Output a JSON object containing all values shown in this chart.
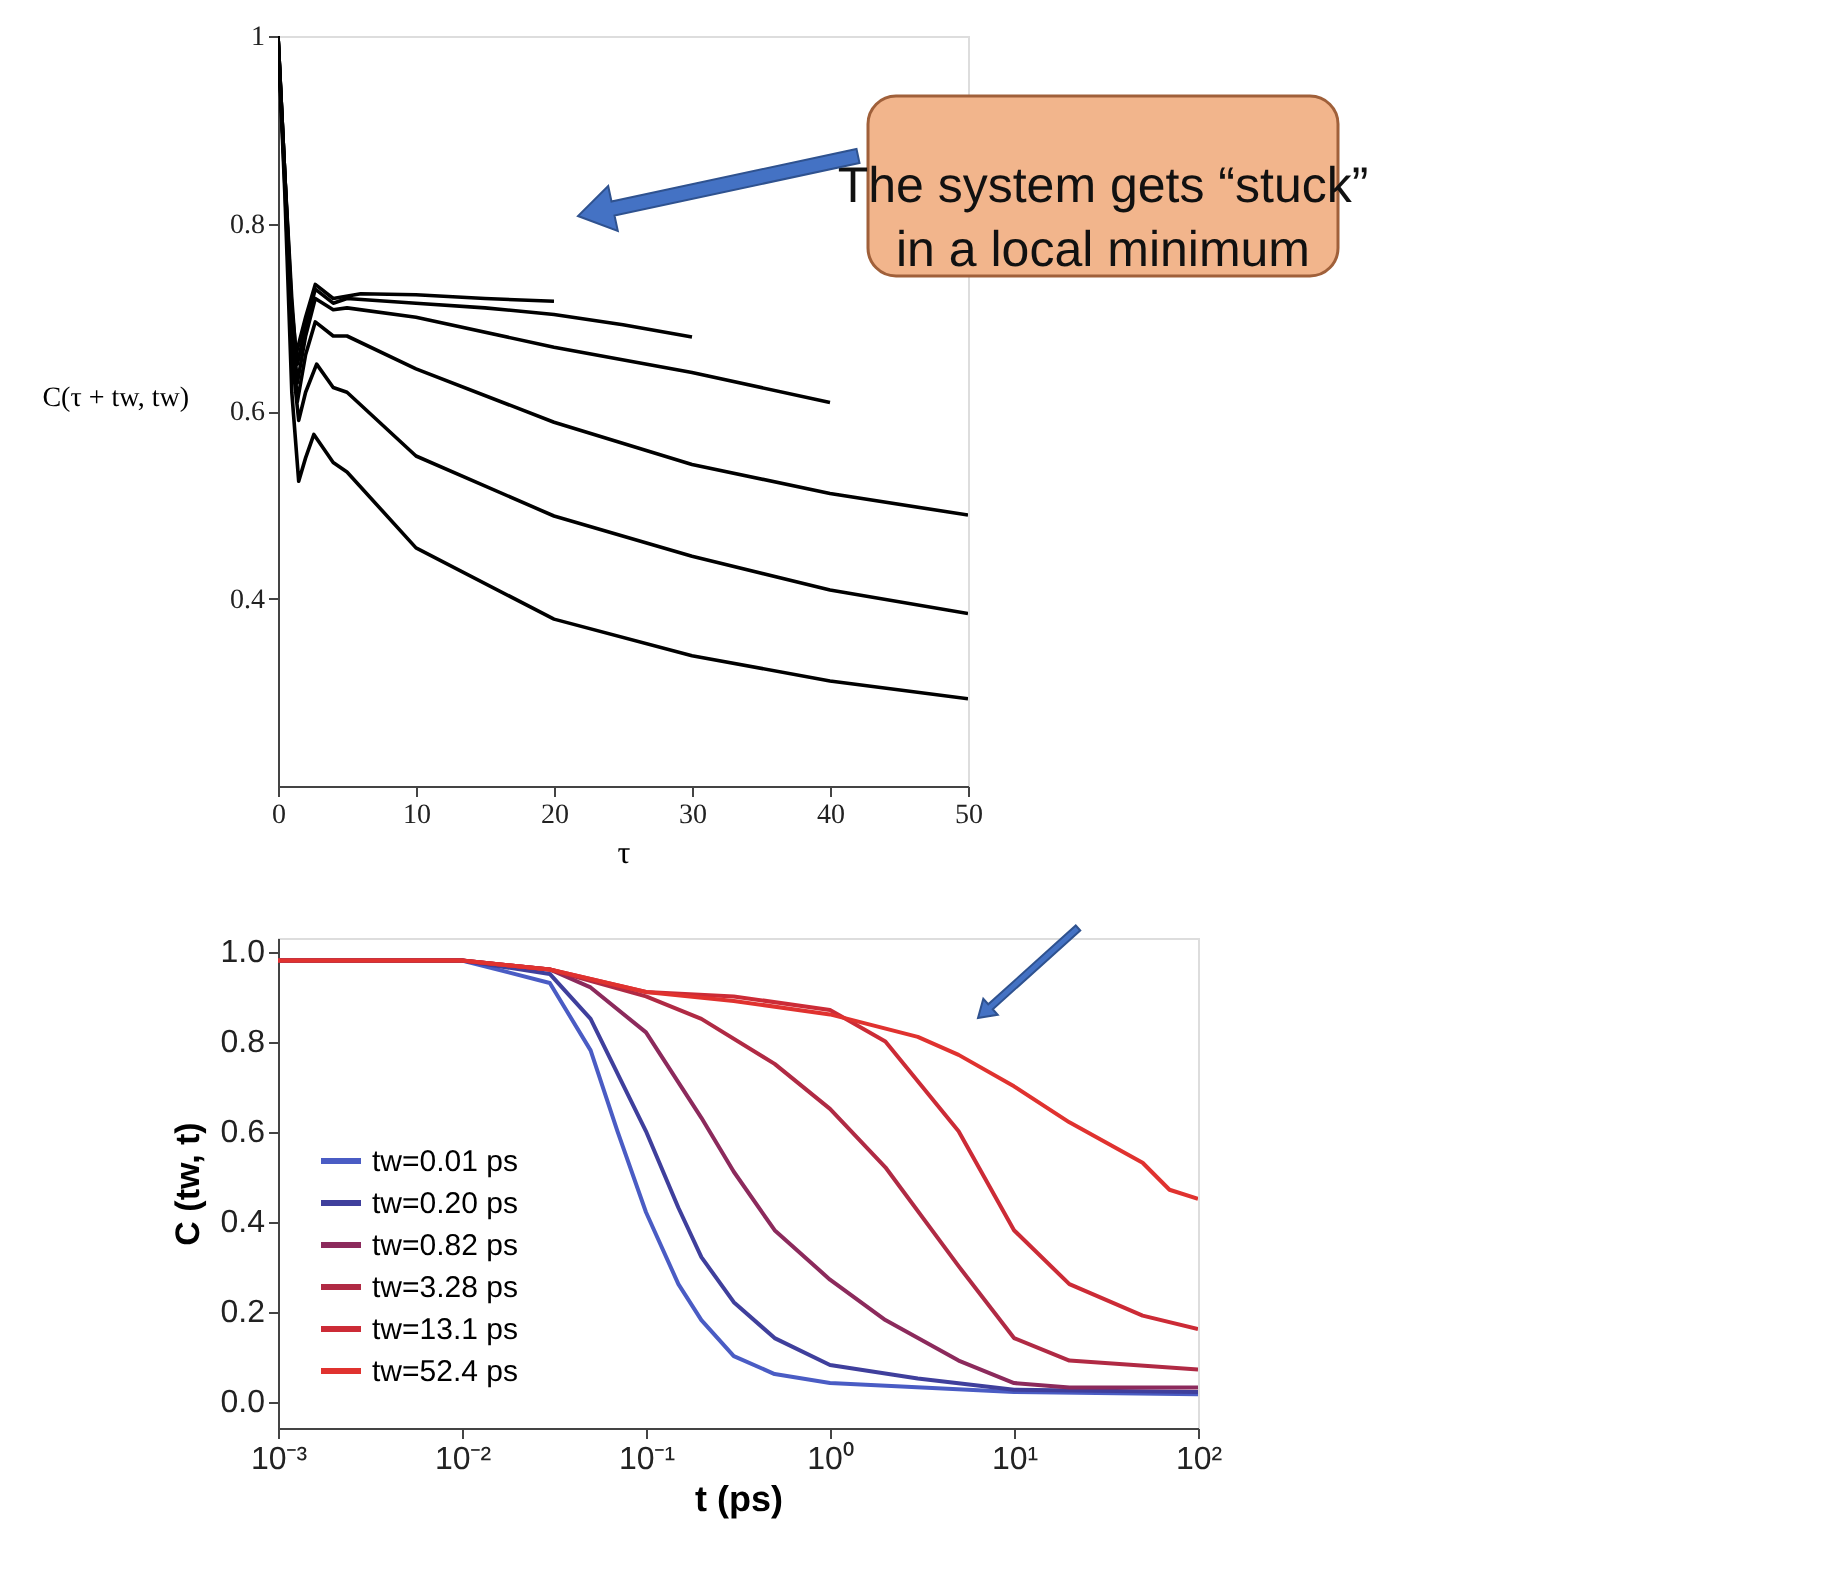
{
  "chart_data": [
    {
      "type": "line",
      "xlabel": "τ",
      "ylabel": "C(τ + tw, tw)",
      "xlim": [
        0,
        50
      ],
      "xticks": [
        0,
        10,
        20,
        30,
        40,
        50
      ],
      "ylim": [
        0.2,
        1
      ],
      "yticks": [
        0.4,
        0.6,
        0.8,
        1
      ],
      "grid": false,
      "legend": false,
      "marker": "none",
      "line_style": "solid",
      "annotations": [
        "The system gets “stuck” in a local minimum"
      ],
      "series": [
        {
          "color": "#000000",
          "x": [
            0,
            0.5,
            1,
            1.3,
            2,
            2.7,
            4,
            6,
            10,
            15,
            20
          ],
          "values": [
            1,
            0.85,
            0.72,
            0.66,
            0.7,
            0.735,
            0.72,
            0.725,
            0.724,
            0.72,
            0.717
          ]
        },
        {
          "color": "#000000",
          "x": [
            0,
            0.5,
            1,
            1.4,
            2,
            2.7,
            4,
            5,
            10,
            15,
            20,
            25,
            30
          ],
          "values": [
            1,
            0.85,
            0.71,
            0.65,
            0.69,
            0.73,
            0.715,
            0.72,
            0.715,
            0.71,
            0.703,
            0.692,
            0.679
          ]
        },
        {
          "color": "#000000",
          "x": [
            0,
            0.5,
            1,
            1.4,
            2,
            2.7,
            4,
            5,
            10,
            20,
            30,
            40
          ],
          "values": [
            1,
            0.85,
            0.7,
            0.63,
            0.68,
            0.72,
            0.708,
            0.71,
            0.7,
            0.668,
            0.641,
            0.609
          ]
        },
        {
          "color": "#000000",
          "x": [
            0,
            0.5,
            1,
            1.4,
            2,
            2.7,
            4,
            5,
            10,
            20,
            30,
            40,
            50
          ],
          "values": [
            1,
            0.85,
            0.69,
            0.61,
            0.66,
            0.695,
            0.68,
            0.68,
            0.645,
            0.588,
            0.543,
            0.512,
            0.489
          ]
        },
        {
          "color": "#000000",
          "x": [
            0,
            0.5,
            1,
            1.5,
            2,
            2.8,
            4,
            5,
            10,
            20,
            30,
            40,
            50
          ],
          "values": [
            1,
            0.84,
            0.66,
            0.59,
            0.62,
            0.65,
            0.625,
            0.62,
            0.552,
            0.488,
            0.445,
            0.409,
            0.384
          ]
        },
        {
          "color": "#000000",
          "x": [
            0,
            0.5,
            1,
            1.5,
            2,
            2.6,
            4,
            5,
            10,
            20,
            30,
            40,
            50
          ],
          "values": [
            1,
            0.83,
            0.62,
            0.525,
            0.55,
            0.575,
            0.545,
            0.535,
            0.454,
            0.378,
            0.339,
            0.312,
            0.293
          ]
        }
      ]
    },
    {
      "type": "line",
      "xlabel": "t (ps)",
      "ylabel": "C (tw, t)",
      "log": "x",
      "xlim": [
        0.001,
        100
      ],
      "xticks": [
        {
          "value": 0.001,
          "label": "10⁻³"
        },
        {
          "value": 0.01,
          "label": "10⁻²"
        },
        {
          "value": 0.1,
          "label": "10⁻¹"
        },
        {
          "value": 1,
          "label": "10⁰"
        },
        {
          "value": 10,
          "label": "10¹"
        },
        {
          "value": 100,
          "label": "10²"
        }
      ],
      "ylim": [
        -0.06,
        1.03
      ],
      "yticks": [
        {
          "value": 0,
          "label": "0.0"
        },
        0.2,
        0.4,
        0.6,
        0.8,
        {
          "value": 1,
          "label": "1.0"
        }
      ],
      "grid": false,
      "legend": "bottom left",
      "marker": "none",
      "line_style": "solid",
      "series": [
        {
          "name": "tw=0.01 ps",
          "color": "#4a5cc4",
          "x": [
            0.001,
            0.01,
            0.03,
            0.05,
            0.07,
            0.1,
            0.15,
            0.2,
            0.3,
            0.5,
            1,
            10,
            100
          ],
          "values": [
            0.98,
            0.98,
            0.93,
            0.78,
            0.6,
            0.42,
            0.26,
            0.18,
            0.1,
            0.06,
            0.04,
            0.02,
            0.015
          ]
        },
        {
          "name": "tw=0.20 ps",
          "color": "#3f3f9c",
          "x": [
            0.001,
            0.01,
            0.03,
            0.05,
            0.1,
            0.15,
            0.2,
            0.3,
            0.5,
            1,
            3,
            10,
            100
          ],
          "values": [
            0.98,
            0.98,
            0.95,
            0.85,
            0.6,
            0.43,
            0.32,
            0.22,
            0.14,
            0.08,
            0.05,
            0.025,
            0.02
          ]
        },
        {
          "name": "tw=0.82 ps",
          "color": "#8c2a5c",
          "x": [
            0.001,
            0.01,
            0.03,
            0.05,
            0.1,
            0.2,
            0.3,
            0.5,
            1,
            2,
            5,
            10,
            20,
            100
          ],
          "values": [
            0.98,
            0.98,
            0.96,
            0.92,
            0.82,
            0.63,
            0.51,
            0.38,
            0.27,
            0.18,
            0.09,
            0.04,
            0.03,
            0.03
          ]
        },
        {
          "name": "tw=3.28 ps",
          "color": "#b02a44",
          "x": [
            0.001,
            0.01,
            0.03,
            0.1,
            0.2,
            0.5,
            1,
            2,
            5,
            10,
            20,
            100
          ],
          "values": [
            0.98,
            0.98,
            0.96,
            0.9,
            0.85,
            0.75,
            0.65,
            0.52,
            0.3,
            0.14,
            0.09,
            0.07
          ]
        },
        {
          "name": "tw=13.1 ps",
          "color": "#cc2b36",
          "x": [
            0.001,
            0.01,
            0.03,
            0.1,
            0.3,
            1,
            2,
            5,
            10,
            20,
            50,
            100
          ],
          "values": [
            0.98,
            0.98,
            0.96,
            0.91,
            0.9,
            0.87,
            0.8,
            0.6,
            0.38,
            0.26,
            0.19,
            0.16
          ]
        },
        {
          "name": "tw=52.4 ps",
          "color": "#e0322f",
          "x": [
            0.001,
            0.01,
            0.03,
            0.1,
            0.3,
            1,
            3,
            5,
            10,
            20,
            50,
            70,
            100
          ],
          "values": [
            0.98,
            0.98,
            0.96,
            0.91,
            0.89,
            0.86,
            0.81,
            0.77,
            0.7,
            0.62,
            0.53,
            0.47,
            0.45
          ]
        }
      ]
    }
  ]
}
